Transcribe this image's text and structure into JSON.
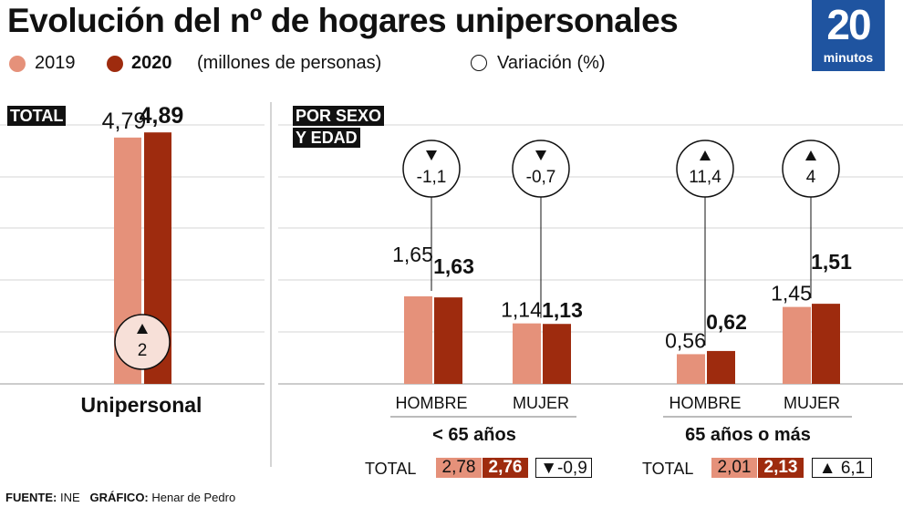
{
  "header": {
    "title": "Evolución del nº de hogares unipersonales",
    "legend_2019": "2019",
    "legend_2020": "2020",
    "legend_unit": "(millones de personas)",
    "legend_variation": "Variación (%)"
  },
  "logo": {
    "number": "20",
    "text": "minutos"
  },
  "panels": {
    "total_tag": "TOTAL",
    "sex_age_tag_line1": "POR SEXO",
    "sex_age_tag_line2": "Y EDAD",
    "total_caption": "Unipersonal",
    "under65_caption": "< 65 años",
    "over65_caption": "65 años o más"
  },
  "summary": {
    "under65": {
      "label": "TOTAL",
      "v2019": "2,78",
      "v2020": "2,76",
      "variation": "▼-0,9"
    },
    "over65": {
      "label": "TOTAL",
      "v2019": "2,01",
      "v2020": "2,13",
      "variation": "▲ 6,1"
    }
  },
  "footer": {
    "source_label": "FUENTE:",
    "source": "INE",
    "graphic_label": "GRÁFICO:",
    "graphic": "Henar de Pedro"
  },
  "colors": {
    "c2019": "#e5917a",
    "c2020": "#9e2b0e",
    "logo": "#1f54a0"
  },
  "chart_data": {
    "type": "bar",
    "series_names": [
      "2019",
      "2020"
    ],
    "groups": [
      {
        "category": "Unipersonal",
        "v2019": 4.79,
        "v2020": 4.89,
        "label2019": "4,79",
        "label2020": "4,89",
        "variation": "2",
        "arrow": "up"
      },
      {
        "category": "HOMBRE",
        "v2019": 1.65,
        "v2020": 1.63,
        "label2019": "1,65",
        "label2020": "1,63",
        "variation": "-1,1",
        "arrow": "down"
      },
      {
        "category": "MUJER",
        "v2019": 1.14,
        "v2020": 1.13,
        "label2019": "1,14",
        "label2020": "1,13",
        "variation": "-0,7",
        "arrow": "down"
      },
      {
        "category": "HOMBRE",
        "v2019": 0.56,
        "v2020": 0.62,
        "label2019": "0,56",
        "label2020": "0,62",
        "variation": "11,4",
        "arrow": "up"
      },
      {
        "category": "MUJER",
        "v2019": 1.45,
        "v2020": 1.51,
        "label2019": "1,45",
        "label2020": "1,51",
        "variation": "4",
        "arrow": "up"
      }
    ],
    "ylim_total": [
      0,
      5
    ],
    "ylim_breakdown": [
      0,
      3
    ],
    "grid": true
  }
}
